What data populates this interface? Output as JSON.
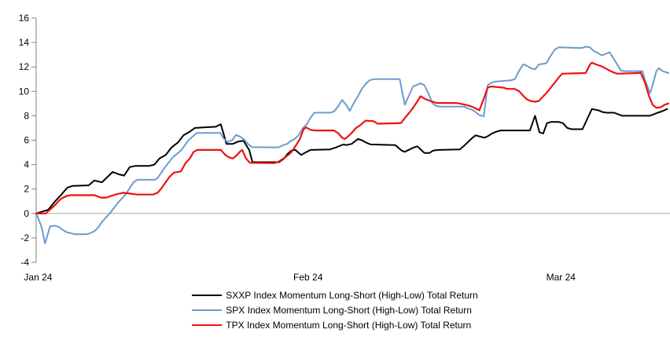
{
  "chart_data": {
    "type": "line",
    "title": "",
    "x_unit": "time position as percent of axis, Jan 2024 to mid-Mar 2024 (daily)",
    "y_unit": "Total return, %",
    "x_axis": {
      "ticks": [
        {
          "label": "Jan 24",
          "pos": 0.3
        },
        {
          "label": "Feb 24",
          "pos": 43.0
        },
        {
          "label": "Mar 24",
          "pos": 83.0
        }
      ]
    },
    "y_axis": {
      "min": -4,
      "max": 16,
      "ticks": [
        16,
        14,
        12,
        10,
        8,
        6,
        4,
        2,
        0,
        -2,
        -4
      ]
    },
    "grid": {
      "zero_line": true,
      "zero_line_color": "#a6a6a6",
      "axis_color": "#808080"
    },
    "legend_position": "bottom",
    "series": [
      {
        "name": "SXXP Index Momentum Long-Short (High-Low) Total Return",
        "color": "#000000",
        "width": 2,
        "points": [
          [
            0,
            0
          ],
          [
            1.9,
            0.3
          ],
          [
            3,
            1
          ],
          [
            3.9,
            1.5
          ],
          [
            4.9,
            2.1
          ],
          [
            5.7,
            2.25
          ],
          [
            8.3,
            2.3
          ],
          [
            9.2,
            2.7
          ],
          [
            10.4,
            2.55
          ],
          [
            12.1,
            3.4
          ],
          [
            13.1,
            3.2
          ],
          [
            13.9,
            3.1
          ],
          [
            14.8,
            3.8
          ],
          [
            15.7,
            3.9
          ],
          [
            17.9,
            3.9
          ],
          [
            18.7,
            4
          ],
          [
            19.5,
            4.5
          ],
          [
            20.5,
            4.8
          ],
          [
            21.4,
            5.4
          ],
          [
            22.4,
            5.8
          ],
          [
            23.3,
            6.4
          ],
          [
            24.3,
            6.7
          ],
          [
            25.1,
            7
          ],
          [
            28.4,
            7.1
          ],
          [
            29.2,
            7.3
          ],
          [
            30.1,
            5.7
          ],
          [
            31.1,
            5.7
          ],
          [
            32,
            5.9
          ],
          [
            32.8,
            5.95
          ],
          [
            33.7,
            5.2
          ],
          [
            34.2,
            4.2
          ],
          [
            38.4,
            4.2
          ],
          [
            39.1,
            4.45
          ],
          [
            39.8,
            4.9
          ],
          [
            40.4,
            5.15
          ],
          [
            41,
            5.2
          ],
          [
            41.9,
            4.8
          ],
          [
            42.8,
            5.05
          ],
          [
            43.4,
            5.2
          ],
          [
            46.5,
            5.25
          ],
          [
            47.4,
            5.4
          ],
          [
            48.1,
            5.55
          ],
          [
            48.6,
            5.65
          ],
          [
            49.1,
            5.6
          ],
          [
            49.9,
            5.7
          ],
          [
            50.9,
            6.1
          ],
          [
            51.5,
            6
          ],
          [
            52.2,
            5.8
          ],
          [
            52.9,
            5.65
          ],
          [
            56.8,
            5.6
          ],
          [
            57.8,
            5.15
          ],
          [
            58.3,
            5.05
          ],
          [
            59.7,
            5.4
          ],
          [
            60.3,
            5.5
          ],
          [
            60.9,
            5.2
          ],
          [
            61.4,
            4.95
          ],
          [
            62.2,
            4.95
          ],
          [
            62.8,
            5.15
          ],
          [
            63.6,
            5.2
          ],
          [
            67,
            5.25
          ],
          [
            67.8,
            5.6
          ],
          [
            68.4,
            5.9
          ],
          [
            69,
            6.2
          ],
          [
            69.5,
            6.4
          ],
          [
            70.9,
            6.2
          ],
          [
            71.5,
            6.35
          ],
          [
            72.1,
            6.55
          ],
          [
            72.8,
            6.7
          ],
          [
            73.5,
            6.8
          ],
          [
            78.1,
            6.8
          ],
          [
            78.9,
            8
          ],
          [
            79.6,
            6.65
          ],
          [
            80.2,
            6.55
          ],
          [
            80.8,
            7.4
          ],
          [
            81.5,
            7.5
          ],
          [
            82.6,
            7.5
          ],
          [
            83.3,
            7.4
          ],
          [
            84,
            7
          ],
          [
            84.7,
            6.9
          ],
          [
            86.4,
            6.9
          ],
          [
            87.3,
            7.9
          ],
          [
            87.9,
            8.55
          ],
          [
            88.9,
            8.45
          ],
          [
            89.6,
            8.3
          ],
          [
            90.2,
            8.25
          ],
          [
            91.4,
            8.25
          ],
          [
            92.7,
            8
          ],
          [
            97,
            8
          ],
          [
            97.6,
            8.1
          ],
          [
            98.3,
            8.25
          ],
          [
            98.9,
            8.35
          ],
          [
            99.8,
            8.55
          ]
        ]
      },
      {
        "name": "SPX Index Momentum Long-Short (High-Low) Total Return",
        "color": "#6B9BCE",
        "width": 2,
        "points": [
          [
            0,
            0
          ],
          [
            0.8,
            -1
          ],
          [
            1.4,
            -2.45
          ],
          [
            2.2,
            -1.05
          ],
          [
            3,
            -1
          ],
          [
            3.6,
            -1.1
          ],
          [
            4.2,
            -1.35
          ],
          [
            4.9,
            -1.55
          ],
          [
            6.1,
            -1.7
          ],
          [
            8,
            -1.7
          ],
          [
            8.6,
            -1.6
          ],
          [
            9.2,
            -1.45
          ],
          [
            9.8,
            -1.15
          ],
          [
            10.4,
            -0.7
          ],
          [
            11.7,
            0.05
          ],
          [
            12.9,
            0.85
          ],
          [
            14.2,
            1.6
          ],
          [
            15.4,
            2.56
          ],
          [
            16,
            2.76
          ],
          [
            18.8,
            2.76
          ],
          [
            19.2,
            2.9
          ],
          [
            20.4,
            3.8
          ],
          [
            21.6,
            4.6
          ],
          [
            22.9,
            5.15
          ],
          [
            24.1,
            6
          ],
          [
            25.4,
            6.6
          ],
          [
            29.1,
            6.6
          ],
          [
            29.7,
            6.1
          ],
          [
            30.3,
            5.85
          ],
          [
            31,
            6
          ],
          [
            31.6,
            6.43
          ],
          [
            32.2,
            6.3
          ],
          [
            32.8,
            6.1
          ],
          [
            33.5,
            5.7
          ],
          [
            34.1,
            5.44
          ],
          [
            37.8,
            5.4
          ],
          [
            38.4,
            5.43
          ],
          [
            39.1,
            5.6
          ],
          [
            39.7,
            5.7
          ],
          [
            40.3,
            5.95
          ],
          [
            40.9,
            6.1
          ],
          [
            41.5,
            6.4
          ],
          [
            42.2,
            7
          ],
          [
            42.8,
            7.3
          ],
          [
            43.4,
            7.85
          ],
          [
            44,
            8.25
          ],
          [
            46.5,
            8.25
          ],
          [
            47.1,
            8.35
          ],
          [
            47.8,
            8.8
          ],
          [
            48.4,
            9.3
          ],
          [
            49,
            8.9
          ],
          [
            49.6,
            8.4
          ],
          [
            50.2,
            9
          ],
          [
            50.9,
            9.6
          ],
          [
            51.5,
            10.2
          ],
          [
            52.1,
            10.6
          ],
          [
            52.7,
            10.9
          ],
          [
            53.4,
            11
          ],
          [
            57.5,
            11
          ],
          [
            58.3,
            8.9
          ],
          [
            59,
            9.7
          ],
          [
            59.6,
            10.4
          ],
          [
            60.8,
            10.65
          ],
          [
            61.4,
            10.5
          ],
          [
            62.1,
            9.75
          ],
          [
            62.7,
            9
          ],
          [
            63.3,
            8.8
          ],
          [
            63.9,
            8.75
          ],
          [
            67.7,
            8.75
          ],
          [
            68.3,
            8.6
          ],
          [
            68.9,
            8.5
          ],
          [
            69.5,
            8.3
          ],
          [
            70.1,
            8.05
          ],
          [
            70.8,
            7.95
          ],
          [
            71.4,
            10.5
          ],
          [
            72,
            10.7
          ],
          [
            72.6,
            10.8
          ],
          [
            75.1,
            10.9
          ],
          [
            75.7,
            11
          ],
          [
            76.4,
            11.7
          ],
          [
            77,
            12.2
          ],
          [
            77.6,
            12.1
          ],
          [
            78.2,
            11.9
          ],
          [
            78.9,
            11.8
          ],
          [
            79.5,
            12.2
          ],
          [
            80.7,
            12.3
          ],
          [
            81.3,
            12.85
          ],
          [
            82,
            13.4
          ],
          [
            82.6,
            13.6
          ],
          [
            86.3,
            13.55
          ],
          [
            86.9,
            13.65
          ],
          [
            87.6,
            13.6
          ],
          [
            88.2,
            13.3
          ],
          [
            88.8,
            13.15
          ],
          [
            89.4,
            12.95
          ],
          [
            90,
            13.05
          ],
          [
            90.7,
            13.2
          ],
          [
            91.3,
            12.7
          ],
          [
            91.9,
            12.2
          ],
          [
            92.5,
            11.7
          ],
          [
            93.2,
            11.65
          ],
          [
            95.9,
            11.65
          ],
          [
            96.3,
            10.9
          ],
          [
            97.1,
            9.85
          ],
          [
            97.5,
            10.5
          ],
          [
            98.1,
            11.65
          ],
          [
            98.5,
            11.9
          ],
          [
            99.1,
            11.65
          ],
          [
            100,
            11.5
          ]
        ]
      },
      {
        "name": "TPX Index Momentum Long-Short (High-Low) Total Return",
        "color": "#EE1111",
        "width": 2.2,
        "points": [
          [
            0,
            0
          ],
          [
            1.5,
            0
          ],
          [
            3,
            0.7
          ],
          [
            3.9,
            1.2
          ],
          [
            4.9,
            1.45
          ],
          [
            5.5,
            1.5
          ],
          [
            9.2,
            1.5
          ],
          [
            10.2,
            1.3
          ],
          [
            11.1,
            1.3
          ],
          [
            11.9,
            1.45
          ],
          [
            12.9,
            1.6
          ],
          [
            13.8,
            1.7
          ],
          [
            15.2,
            1.6
          ],
          [
            16,
            1.55
          ],
          [
            18.5,
            1.55
          ],
          [
            19.2,
            1.7
          ],
          [
            19.8,
            2.05
          ],
          [
            20.4,
            2.5
          ],
          [
            21.1,
            3
          ],
          [
            21.8,
            3.35
          ],
          [
            22.9,
            3.45
          ],
          [
            23.6,
            4.1
          ],
          [
            24.3,
            4.5
          ],
          [
            24.9,
            5.05
          ],
          [
            25.5,
            5.2
          ],
          [
            29.2,
            5.2
          ],
          [
            29.9,
            4.8
          ],
          [
            30.5,
            4.6
          ],
          [
            31.1,
            4.5
          ],
          [
            31.7,
            4.75
          ],
          [
            32.3,
            5.1
          ],
          [
            32.6,
            5.2
          ],
          [
            33.2,
            4.5
          ],
          [
            33.8,
            4.15
          ],
          [
            37.6,
            4.12
          ],
          [
            38.2,
            4.2
          ],
          [
            38.8,
            4.4
          ],
          [
            39.4,
            4.6
          ],
          [
            40,
            4.85
          ],
          [
            40.4,
            5.05
          ],
          [
            41,
            5.5
          ],
          [
            41.7,
            6.1
          ],
          [
            42.3,
            6.9
          ],
          [
            42.7,
            7.05
          ],
          [
            43.4,
            6.85
          ],
          [
            44,
            6.8
          ],
          [
            47.1,
            6.8
          ],
          [
            47.8,
            6.55
          ],
          [
            48.4,
            6.2
          ],
          [
            48.8,
            6.1
          ],
          [
            49.4,
            6.35
          ],
          [
            50,
            6.65
          ],
          [
            50.6,
            7
          ],
          [
            51.2,
            7.2
          ],
          [
            52.1,
            7.6
          ],
          [
            53.4,
            7.55
          ],
          [
            54,
            7.35
          ],
          [
            57.7,
            7.4
          ],
          [
            58.3,
            7.8
          ],
          [
            59,
            8.25
          ],
          [
            59.6,
            8.65
          ],
          [
            60.2,
            9.1
          ],
          [
            60.8,
            9.6
          ],
          [
            61.4,
            9.4
          ],
          [
            62.1,
            9.25
          ],
          [
            62.7,
            9.15
          ],
          [
            63.3,
            9.05
          ],
          [
            66.4,
            9.05
          ],
          [
            67,
            9
          ],
          [
            68.3,
            8.85
          ],
          [
            68.9,
            8.75
          ],
          [
            69.5,
            8.6
          ],
          [
            70.1,
            8.45
          ],
          [
            70.8,
            9.4
          ],
          [
            71.4,
            10.3
          ],
          [
            72,
            10.4
          ],
          [
            73.9,
            10.3
          ],
          [
            74.5,
            10.2
          ],
          [
            75.7,
            10.2
          ],
          [
            76.4,
            10
          ],
          [
            77,
            9.65
          ],
          [
            77.6,
            9.35
          ],
          [
            78.2,
            9.2
          ],
          [
            78.9,
            9.15
          ],
          [
            79.5,
            9.2
          ],
          [
            80.1,
            9.55
          ],
          [
            80.7,
            9.85
          ],
          [
            81.3,
            10.25
          ],
          [
            82,
            10.7
          ],
          [
            82.6,
            11.1
          ],
          [
            83.2,
            11.45
          ],
          [
            86.9,
            11.5
          ],
          [
            87.6,
            12.2
          ],
          [
            87.9,
            12.35
          ],
          [
            88.6,
            12.2
          ],
          [
            89.4,
            12.05
          ],
          [
            90,
            11.9
          ],
          [
            90.7,
            11.7
          ],
          [
            91.3,
            11.55
          ],
          [
            91.9,
            11.45
          ],
          [
            95.3,
            11.5
          ],
          [
            95.6,
            11.55
          ],
          [
            96.3,
            10.7
          ],
          [
            96.9,
            9.65
          ],
          [
            97.5,
            8.9
          ],
          [
            98.1,
            8.65
          ],
          [
            98.8,
            8.7
          ],
          [
            99.4,
            8.9
          ],
          [
            100,
            9
          ]
        ]
      }
    ]
  }
}
